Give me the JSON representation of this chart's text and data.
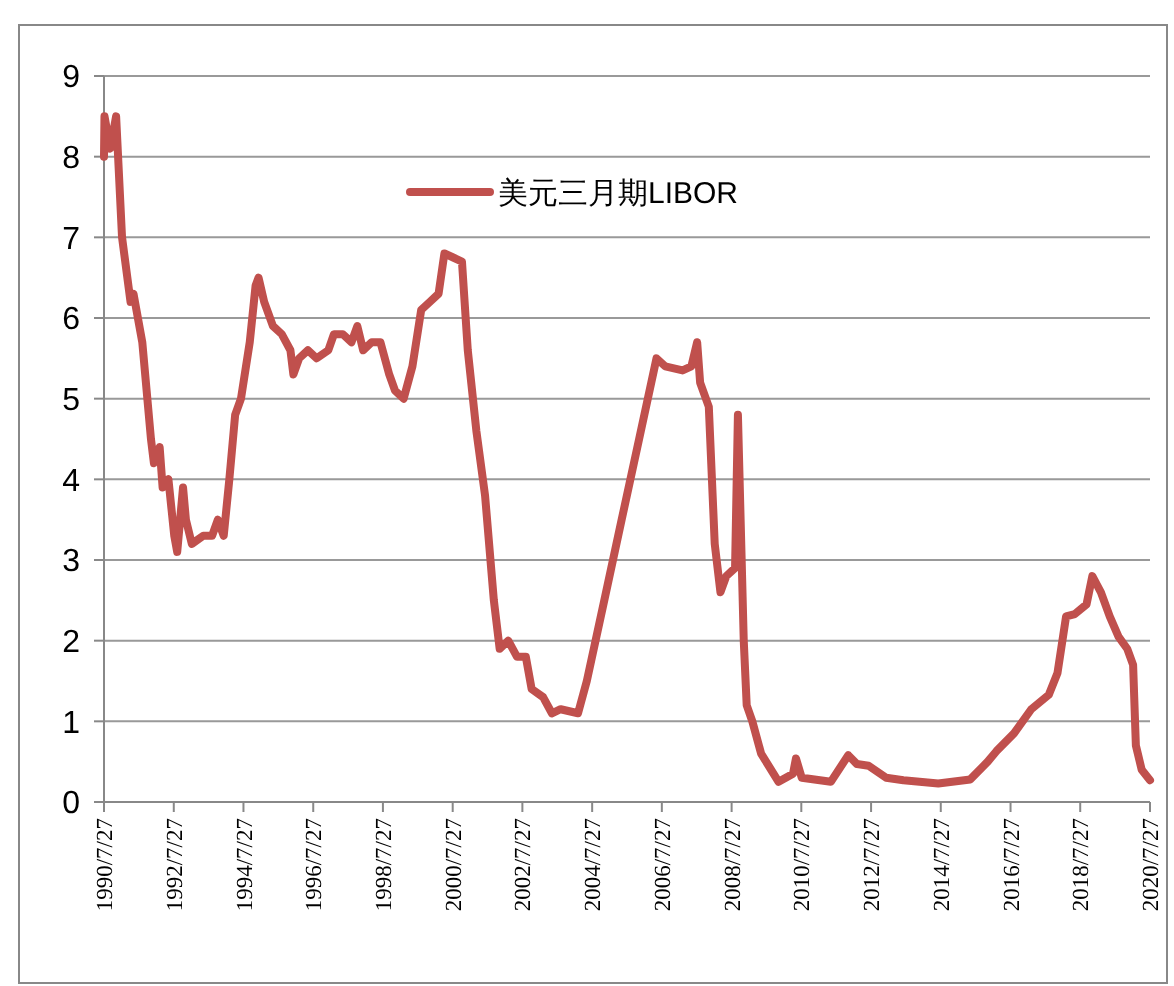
{
  "chart_data": {
    "type": "line",
    "xlim": [
      "1990-07-27",
      "2020-07-27"
    ],
    "xticks": [
      {
        "value": "1990-07-27",
        "label": "1990/7/27"
      },
      {
        "value": "1992-07-27",
        "label": "1992/7/27"
      },
      {
        "value": "1994-07-27",
        "label": "1994/7/27"
      },
      {
        "value": "1996-07-27",
        "label": "1996/7/27"
      },
      {
        "value": "1998-07-27",
        "label": "1998/7/27"
      },
      {
        "value": "2000-07-27",
        "label": "2000/7/27"
      },
      {
        "value": "2002-07-27",
        "label": "2002/7/27"
      },
      {
        "value": "2004-07-27",
        "label": "2004/7/27"
      },
      {
        "value": "2006-07-27",
        "label": "2006/7/27"
      },
      {
        "value": "2008-07-27",
        "label": "2008/7/27"
      },
      {
        "value": "2010-07-27",
        "label": "2010/7/27"
      },
      {
        "value": "2012-07-27",
        "label": "2012/7/27"
      },
      {
        "value": "2014-07-27",
        "label": "2014/7/27"
      },
      {
        "value": "2016-07-27",
        "label": "2016/7/27"
      },
      {
        "value": "2018-07-27",
        "label": "2018/7/27"
      },
      {
        "value": "2020-07-27",
        "label": "2020/7/27"
      }
    ],
    "ylim": [
      0,
      9
    ],
    "yticks": [
      0,
      1,
      2,
      3,
      4,
      5,
      6,
      7,
      8,
      9
    ],
    "grid": "y",
    "legend": "top",
    "line_style": "solid",
    "marker": "none",
    "x": [
      "1990-07-27",
      "1990-08",
      "1990-10",
      "1990-12",
      "1991-02",
      "1991-05",
      "1991-06",
      "1991-09",
      "1991-12",
      "1992-01",
      "1992-03",
      "1992-04",
      "1992-06",
      "1992-08",
      "1992-09",
      "1992-11",
      "1992-12",
      "1993-02",
      "1993-06",
      "1993-09",
      "1993-11",
      "1994-01",
      "1994-03",
      "1994-05",
      "1994-07",
      "1994-10",
      "1994-12",
      "1995-01",
      "1995-03",
      "1995-06",
      "1995-09",
      "1995-12",
      "1996-01",
      "1996-03",
      "1996-06",
      "1996-09",
      "1997-01",
      "1997-03",
      "1997-06",
      "1997-09",
      "1997-11",
      "1998-01",
      "1998-04",
      "1998-07",
      "1998-10",
      "1998-12",
      "1999-03",
      "1999-06",
      "1999-09",
      "1999-12",
      "2000-03",
      "2000-05",
      "2000-08",
      "2000-11",
      "2001-01",
      "2001-04",
      "2001-07",
      "2001-10",
      "2001-12",
      "2002-03",
      "2002-06",
      "2002-09",
      "2002-11",
      "2003-03",
      "2003-06",
      "2003-09",
      "2004-03",
      "2004-06",
      "2004-12",
      "2005-06",
      "2005-12",
      "2006-06",
      "2006-09",
      "2007-03",
      "2007-06",
      "2007-08",
      "2007-09",
      "2007-12",
      "2008-02",
      "2008-04",
      "2008-06",
      "2008-09",
      "2008-10",
      "2008-12",
      "2009-01",
      "2009-03",
      "2009-06",
      "2009-12",
      "2010-05",
      "2010-06",
      "2010-08",
      "2011-06",
      "2011-12",
      "2012-03",
      "2012-07",
      "2013-01",
      "2013-07",
      "2014-07",
      "2015-06",
      "2015-12",
      "2016-03",
      "2016-09",
      "2017-03",
      "2017-09",
      "2017-12",
      "2018-03",
      "2018-06",
      "2018-10",
      "2018-12",
      "2019-03",
      "2019-06",
      "2019-09",
      "2019-12",
      "2020-02",
      "2020-03",
      "2020-05",
      "2020-07-27"
    ],
    "series": [
      {
        "name": "美元三月期LIBOR",
        "color": "#c0504d",
        "values": [
          8.0,
          8.5,
          8.1,
          8.5,
          7.0,
          6.2,
          6.3,
          5.7,
          4.5,
          4.2,
          4.4,
          3.9,
          4.0,
          3.3,
          3.1,
          3.9,
          3.5,
          3.2,
          3.3,
          3.3,
          3.5,
          3.3,
          4.0,
          4.8,
          5.0,
          5.7,
          6.4,
          6.5,
          6.2,
          5.9,
          5.8,
          5.6,
          5.3,
          5.5,
          5.6,
          5.5,
          5.6,
          5.8,
          5.8,
          5.7,
          5.9,
          5.6,
          5.7,
          5.7,
          5.3,
          5.1,
          5.0,
          5.4,
          6.1,
          6.2,
          6.3,
          6.8,
          6.75,
          6.7,
          5.6,
          4.6,
          3.8,
          2.5,
          1.9,
          2.0,
          1.8,
          1.8,
          1.4,
          1.3,
          1.1,
          1.15,
          1.1,
          1.5,
          2.5,
          3.5,
          4.5,
          5.5,
          5.4,
          5.35,
          5.4,
          5.7,
          5.2,
          4.9,
          3.2,
          2.6,
          2.8,
          2.9,
          4.8,
          2.0,
          1.2,
          1.0,
          0.6,
          0.25,
          0.35,
          0.54,
          0.3,
          0.25,
          0.58,
          0.47,
          0.45,
          0.3,
          0.27,
          0.23,
          0.28,
          0.5,
          0.63,
          0.85,
          1.15,
          1.33,
          1.6,
          2.3,
          2.33,
          2.45,
          2.8,
          2.6,
          2.3,
          2.05,
          1.9,
          1.7,
          0.7,
          0.4,
          0.27
        ]
      }
    ]
  }
}
